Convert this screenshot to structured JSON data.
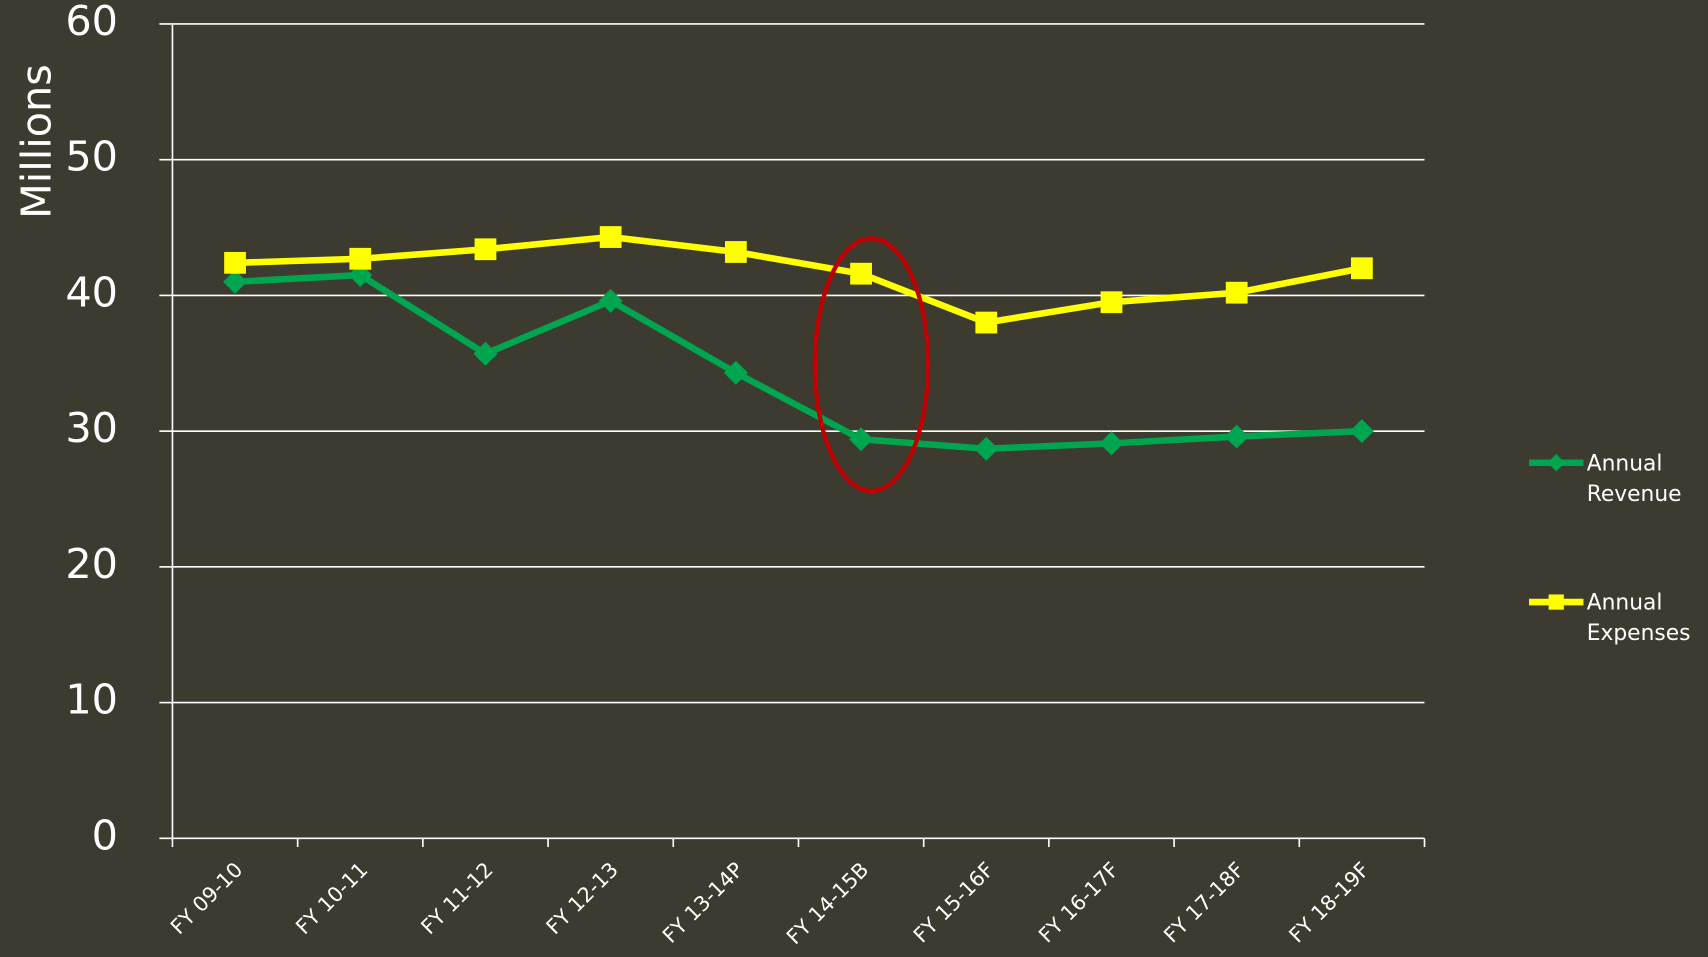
{
  "chart_data": {
    "type": "line",
    "y_label": "Millions",
    "categories": [
      "FY 09-10",
      "FY 10-11",
      "FY 11-12",
      "FY 12-13",
      "FY 13-14P",
      "FY 14-15B",
      "FY 15-16F",
      "FY 16-17F",
      "FY 17-18F",
      "FY 18-19F"
    ],
    "series": [
      {
        "name": "Annual Revenue",
        "color": "#00a550",
        "marker": "diamond",
        "values": [
          41.0,
          41.5,
          35.7,
          39.6,
          34.3,
          29.4,
          28.7,
          29.1,
          29.6,
          30.0
        ]
      },
      {
        "name": "Annual Expenses",
        "color": "#ffff00",
        "marker": "square",
        "values": [
          42.4,
          42.7,
          43.4,
          44.3,
          43.2,
          41.6,
          38.0,
          39.5,
          40.2,
          42.0
        ]
      }
    ],
    "ylim": [
      0,
      60
    ],
    "yticks": [
      0,
      10,
      20,
      30,
      40,
      50,
      60
    ],
    "grid": true,
    "legend": "right"
  }
}
